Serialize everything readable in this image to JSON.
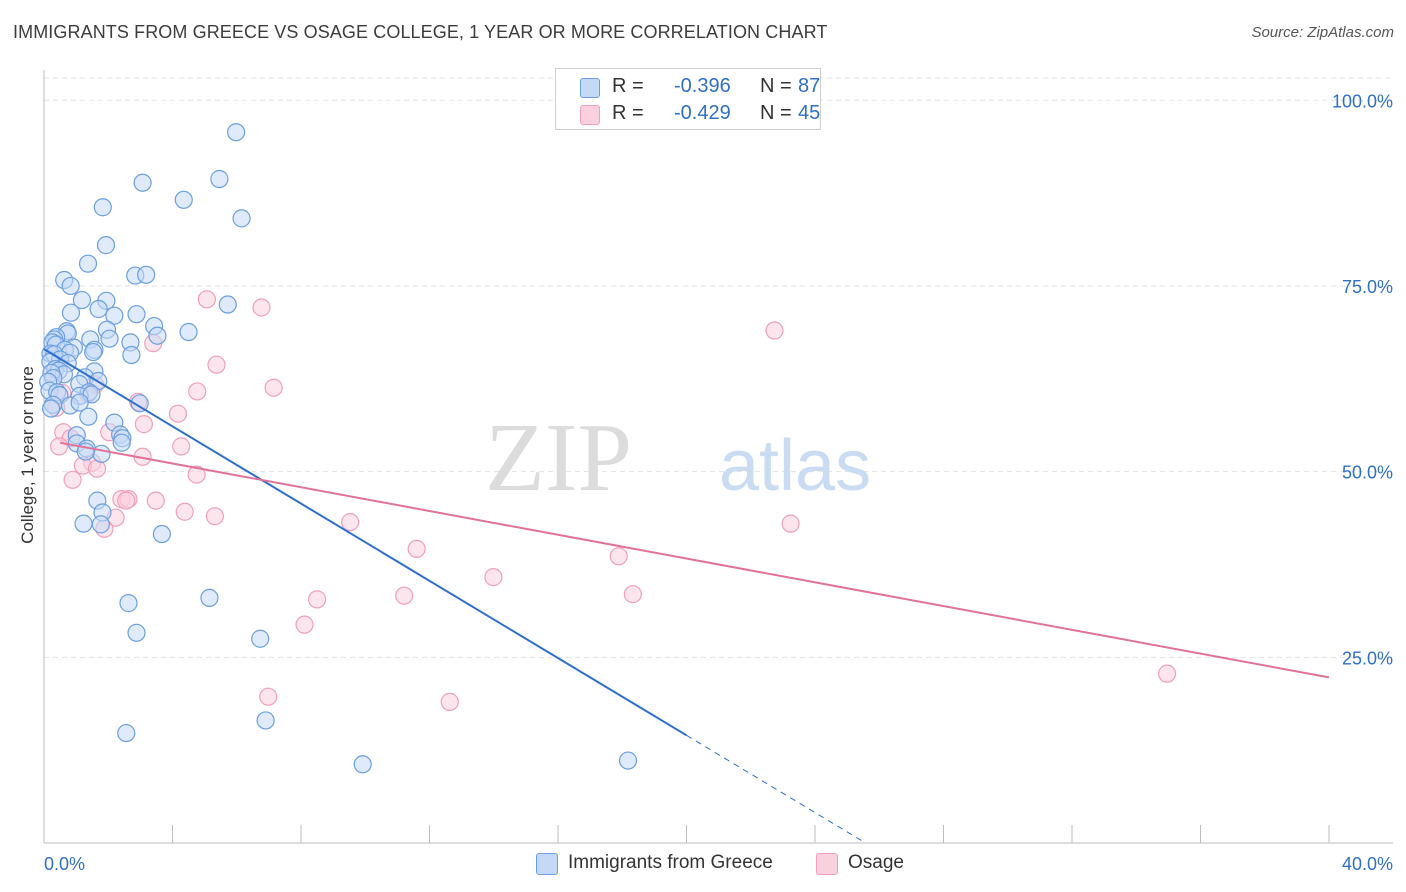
{
  "title": "IMMIGRANTS FROM GREECE VS OSAGE COLLEGE, 1 YEAR OR MORE CORRELATION CHART",
  "source": "Source: ZipAtlas.com",
  "watermark": {
    "part1": "ZIP",
    "part2": "atlas"
  },
  "stats": {
    "rows": [
      {
        "r_label": "R =",
        "r_value": "-0.396",
        "n_label": "N =",
        "n_value": "87",
        "color": "#6c9fe0",
        "fill": "#c4d9f5"
      },
      {
        "r_label": "R =",
        "r_value": "-0.429",
        "n_label": "N =",
        "n_value": "45",
        "color": "#f0a0b8",
        "fill": "#f9d0de"
      }
    ]
  },
  "legend": {
    "items": [
      {
        "label": "Immigrants from Greece",
        "color": "#6c9fe0",
        "fill": "#c4d9f5"
      },
      {
        "label": "Osage",
        "color": "#f0a0b8",
        "fill": "#f9d0de"
      }
    ]
  },
  "chart_data": {
    "type": "scatter",
    "title": "IMMIGRANTS FROM GREECE VS OSAGE COLLEGE, 1 YEAR OR MORE CORRELATION CHART",
    "xlabel": "",
    "ylabel": "College, 1 year or more",
    "xlim": [
      0,
      40
    ],
    "ylim": [
      0,
      103
    ],
    "x_tick_labels": [
      {
        "value": 0,
        "label": "0.0%"
      },
      {
        "value": 40,
        "label": "40.0%"
      }
    ],
    "y_tick_labels": [
      {
        "value": 25,
        "label": "25.0%"
      },
      {
        "value": 50,
        "label": "50.0%"
      },
      {
        "value": 75,
        "label": "75.0%"
      },
      {
        "value": 100,
        "label": "100.0%"
      }
    ],
    "grid": true,
    "series": [
      {
        "name": "Immigrants from Greece",
        "color": "#6c9fe0",
        "fill": "#c4d9f5",
        "line_color": "#2e6fce",
        "trend": {
          "x0": 0,
          "y0": 66.5,
          "x1": 20.0,
          "y1": 14.5,
          "dash_to_x": 25.5
        },
        "points": [
          [
            5.98,
            95.7
          ],
          [
            5.46,
            89.4
          ],
          [
            3.07,
            88.9
          ],
          [
            4.35,
            86.6
          ],
          [
            1.83,
            85.6
          ],
          [
            6.15,
            84.1
          ],
          [
            1.93,
            80.5
          ],
          [
            1.37,
            78.0
          ],
          [
            0.63,
            75.8
          ],
          [
            2.84,
            76.4
          ],
          [
            3.18,
            76.5
          ],
          [
            0.83,
            75.0
          ],
          [
            5.72,
            72.5
          ],
          [
            1.18,
            73.1
          ],
          [
            1.94,
            73.0
          ],
          [
            1.7,
            71.9
          ],
          [
            0.84,
            71.4
          ],
          [
            2.19,
            71.0
          ],
          [
            2.88,
            71.2
          ],
          [
            3.43,
            69.6
          ],
          [
            1.96,
            69.1
          ],
          [
            0.71,
            68.9
          ],
          [
            4.5,
            68.8
          ],
          [
            3.53,
            68.3
          ],
          [
            0.74,
            68.6
          ],
          [
            0.38,
            68.1
          ],
          [
            0.32,
            67.8
          ],
          [
            0.26,
            67.4
          ],
          [
            2.04,
            67.9
          ],
          [
            1.44,
            67.8
          ],
          [
            2.69,
            67.4
          ],
          [
            0.37,
            67.1
          ],
          [
            0.93,
            66.7
          ],
          [
            0.65,
            66.4
          ],
          [
            0.81,
            66.0
          ],
          [
            0.2,
            65.9
          ],
          [
            0.32,
            65.8
          ],
          [
            1.57,
            66.4
          ],
          [
            1.53,
            66.1
          ],
          [
            2.72,
            65.7
          ],
          [
            0.5,
            65.1
          ],
          [
            0.2,
            64.8
          ],
          [
            0.74,
            64.6
          ],
          [
            0.35,
            63.8
          ],
          [
            0.46,
            63.6
          ],
          [
            0.62,
            63.1
          ],
          [
            0.23,
            63.3
          ],
          [
            0.29,
            62.6
          ],
          [
            1.57,
            63.5
          ],
          [
            0.13,
            62.1
          ],
          [
            1.28,
            62.7
          ],
          [
            1.69,
            62.2
          ],
          [
            1.1,
            61.8
          ],
          [
            0.17,
            60.9
          ],
          [
            0.41,
            60.7
          ],
          [
            0.48,
            60.3
          ],
          [
            1.4,
            60.7
          ],
          [
            1.11,
            60.2
          ],
          [
            1.48,
            60.4
          ],
          [
            2.98,
            59.2
          ],
          [
            0.28,
            59.0
          ],
          [
            0.81,
            58.9
          ],
          [
            0.22,
            58.5
          ],
          [
            1.11,
            59.3
          ],
          [
            1.38,
            57.4
          ],
          [
            2.19,
            56.6
          ],
          [
            1.02,
            54.9
          ],
          [
            2.37,
            55.0
          ],
          [
            2.44,
            54.5
          ],
          [
            2.42,
            53.9
          ],
          [
            1.02,
            53.8
          ],
          [
            1.33,
            53.1
          ],
          [
            1.79,
            52.4
          ],
          [
            1.3,
            52.7
          ],
          [
            1.66,
            46.1
          ],
          [
            1.82,
            44.5
          ],
          [
            1.23,
            43.0
          ],
          [
            1.77,
            42.9
          ],
          [
            3.67,
            41.6
          ],
          [
            5.15,
            33.0
          ],
          [
            2.63,
            32.3
          ],
          [
            2.88,
            28.3
          ],
          [
            6.73,
            27.5
          ],
          [
            6.9,
            16.5
          ],
          [
            2.56,
            14.8
          ],
          [
            9.92,
            10.6
          ],
          [
            18.18,
            11.1
          ]
        ]
      },
      {
        "name": "Osage",
        "color": "#f0a0b8",
        "fill": "#f9d0de",
        "line_color": "#e0729a",
        "trend": {
          "x0": 0.5,
          "y0": 53.9,
          "x1": 40.0,
          "y1": 22.3
        },
        "points": [
          [
            5.07,
            73.2
          ],
          [
            6.77,
            72.1
          ],
          [
            22.74,
            69.0
          ],
          [
            3.4,
            67.3
          ],
          [
            5.37,
            64.4
          ],
          [
            7.15,
            61.3
          ],
          [
            1.59,
            61.7
          ],
          [
            4.77,
            60.8
          ],
          [
            0.57,
            60.6
          ],
          [
            2.93,
            59.4
          ],
          [
            0.38,
            58.6
          ],
          [
            4.17,
            57.8
          ],
          [
            3.11,
            56.4
          ],
          [
            2.03,
            55.3
          ],
          [
            0.6,
            55.3
          ],
          [
            0.83,
            54.5
          ],
          [
            0.47,
            53.4
          ],
          [
            4.27,
            53.4
          ],
          [
            3.07,
            52.0
          ],
          [
            1.5,
            51.2
          ],
          [
            1.21,
            50.8
          ],
          [
            1.65,
            50.4
          ],
          [
            4.75,
            49.6
          ],
          [
            0.89,
            48.9
          ],
          [
            2.41,
            46.3
          ],
          [
            2.63,
            46.3
          ],
          [
            2.56,
            46.1
          ],
          [
            3.48,
            46.1
          ],
          [
            4.38,
            44.6
          ],
          [
            5.32,
            44.0
          ],
          [
            2.23,
            43.8
          ],
          [
            9.53,
            43.2
          ],
          [
            23.24,
            43.0
          ],
          [
            1.88,
            42.3
          ],
          [
            11.6,
            39.6
          ],
          [
            17.89,
            38.6
          ],
          [
            13.99,
            35.8
          ],
          [
            11.21,
            33.3
          ],
          [
            18.33,
            33.5
          ],
          [
            8.5,
            32.8
          ],
          [
            8.11,
            29.4
          ],
          [
            34.96,
            22.8
          ],
          [
            6.98,
            19.7
          ],
          [
            12.63,
            19.0
          ],
          [
            1.37,
            60.5
          ]
        ]
      }
    ]
  }
}
